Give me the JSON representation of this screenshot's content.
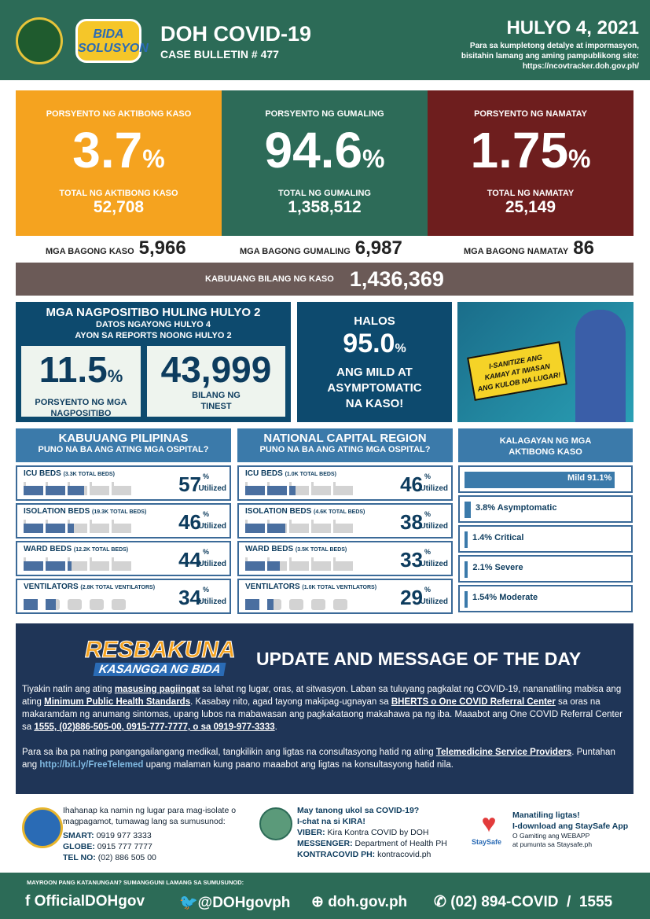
{
  "header": {
    "title": "DOH COVID-19",
    "bulletin": "CASE BULLETIN # 477",
    "date": "HULYO 4, 2021",
    "info_line1": "Para sa kumpletong detalye at impormasyon,",
    "info_line2": "bisitahin lamang ang aming pampublikong site:",
    "url": "https://ncovtracker.doh.gov.ph/",
    "logo_text": "BIDA SOLUSYON sa COVID-19",
    "seal_text": "Republic of the Philippines Department of Health"
  },
  "stats": [
    {
      "label": "PORSYENTO NG AKTIBONG KASO",
      "pct": "3.7",
      "total_label": "TOTAL NG AKTIBONG KASO",
      "total": "52,708",
      "color": "#f5a31f"
    },
    {
      "label": "PORSYENTO NG GUMALING",
      "pct": "94.6",
      "total_label": "TOTAL NG GUMALING",
      "total": "1,358,512",
      "color": "#2d6b58"
    },
    {
      "label": "PORSYENTO NG NAMATAY",
      "pct": "1.75",
      "total_label": "TOTAL NG NAMATAY",
      "total": "25,149",
      "color": "#6e1e1e"
    }
  ],
  "pct_sign": "%",
  "new": [
    {
      "label": "MGA BAGONG KASO",
      "value": "5,966"
    },
    {
      "label": "MGA BAGONG GUMALING",
      "value": "6,987"
    },
    {
      "label": "MGA BAGONG NAMATAY",
      "value": "86"
    }
  ],
  "total": {
    "label": "KABUUANG BILANG NG KASO",
    "value": "1,436,369"
  },
  "positivity": {
    "title": "MGA NAGPOSITIBO HULING HULYO 2",
    "sub1": "DATOS NGAYONG HULYO 4",
    "sub2": "AYON SA REPORTS NOONG HULYO 2",
    "rate": "11.5",
    "rate_label1": "PORSYENTO NG MGA",
    "rate_label2": "NAGPOSITIBO",
    "tests": "43,999",
    "tests_label1": "BILANG NG",
    "tests_label2": "TINEST"
  },
  "halos": {
    "l1": "HALOS",
    "value": "95.0",
    "l2": "ANG MILD AT",
    "l3": "ASYMPTOMATIC",
    "l4": "NA KASO!"
  },
  "poster": {
    "text1": "I-SANITIZE ANG",
    "text2": "KAMAY AT IWASAN",
    "text3": "ANG KULOB NA LUGAR!"
  },
  "hospitals": [
    {
      "title": "KABUUANG PILIPINAS",
      "subtitle": "PUNO NA BA ANG ATING MGA OSPITAL?",
      "rows": [
        {
          "name": "ICU BEDS",
          "cap": "(3.3K TOTAL BEDS)",
          "pct": 57,
          "type": "bed"
        },
        {
          "name": "ISOLATION BEDS",
          "cap": "(19.3K TOTAL BEDS)",
          "pct": 46,
          "type": "bed"
        },
        {
          "name": "WARD BEDS",
          "cap": "(12.2K TOTAL BEDS)",
          "pct": 44,
          "type": "bed"
        },
        {
          "name": "VENTILATORS",
          "cap": "(2.8K TOTAL VENTILATORS)",
          "pct": 34,
          "type": "vent"
        }
      ]
    },
    {
      "title": "NATIONAL CAPITAL REGION",
      "subtitle": "PUNO NA BA ANG ATING MGA OSPITAL?",
      "rows": [
        {
          "name": "ICU BEDS",
          "cap": "(1.0K TOTAL BEDS)",
          "pct": 46,
          "type": "bed"
        },
        {
          "name": "ISOLATION BEDS",
          "cap": "(4.6K TOTAL BEDS)",
          "pct": 38,
          "type": "bed"
        },
        {
          "name": "WARD BEDS",
          "cap": "(3.5K TOTAL BEDS)",
          "pct": 33,
          "type": "bed"
        },
        {
          "name": "VENTILATORS",
          "cap": "(1.0K TOTAL VENTILATORS)",
          "pct": 29,
          "type": "vent"
        }
      ]
    }
  ],
  "utilized": "Utilized",
  "status": {
    "title1": "KALAGAYAN NG MGA",
    "title2": "AKTIBONG KASO",
    "items": [
      {
        "label": "Mild 91.1%",
        "pct": 91.1
      },
      {
        "label": "3.8% Asymptomatic",
        "pct": 3.8
      },
      {
        "label": "1.4% Critical",
        "pct": 1.4
      },
      {
        "label": "2.1% Severe",
        "pct": 2.1
      },
      {
        "label": "1.54% Moderate",
        "pct": 1.54
      }
    ]
  },
  "message": {
    "logo1": "RESBAKUNA",
    "logo2": "KASANGGA NG BIDA",
    "title": "UPDATE AND MESSAGE OF THE DAY",
    "p1": [
      "Tiyakin natin ang ating ",
      "masusing pagiingat",
      " sa lahat ng lugar, oras, at sitwasyon. Laban sa tuluyang pagkalat ng COVID-19, nananatiling mabisa ang ating ",
      "Minimum Public Health Standards",
      ". Kasabay nito, agad tayong makipag-ugnayan sa  ",
      "BHERTS o One COVID Referral Center",
      " sa oras na makaramdam ng anumang sintomas, upang lubos na mabawasan ang pagkakataong makahawa pa ng iba. Maaabot ang One COVID Referral Center sa ",
      "1555, (02)886-505-00, 0915-777-7777, o sa 0919-977-3333",
      "."
    ],
    "p2": [
      "Para sa iba pa nating pangangailangang medikal, tangkilikin ang ligtas na consultasyong hatid ng ating ",
      "Telemedicine Service Providers",
      ". Puntahan ang ",
      "http://bit.ly/FreeTelemed",
      " upang malaman kung paano maaabot ang ligtas na konsultasyong hatid nila."
    ]
  },
  "contacts": {
    "isolate": {
      "text": "Ihahanap ka namin ng lugar para mag-isolate o magpagamot, tumawag lang sa sumusunod:",
      "smart_l": "SMART:",
      "smart": " 0919 977 3333",
      "globe_l": "GLOBE:",
      "globe": " 0915 777 7777",
      "tel_l": "TEL NO:",
      "tel": " (02) 886 505 00"
    },
    "kira": {
      "q": "May tanong ukol sa COVID-19?",
      "chat": "I-chat na si KIRA!",
      "viber_l": "VIBER:",
      "viber": " Kira Kontra COVID by DOH",
      "msgr_l": "MESSENGER:",
      "msgr": " Department of Health PH",
      "kc_l": "KONTRACOVID PH:",
      "kc": " kontracovid.ph"
    },
    "staysafe": {
      "logo": "StaySafe",
      "l1": "Manatiling ligtas!",
      "l2": "I-download ang StaySafe App",
      "l3": "O Gamiting ang WEBAPP",
      "l4": "at pumunta sa Staysafe.ph"
    }
  },
  "footer": {
    "label": "MAYROON PANG KATANUNGAN? SUMANGGUNI LAMANG SA SUMUSUNOD:",
    "facebook": "OfficialDOHgov",
    "twitter": "@DOHgovph",
    "web": "doh.gov.ph",
    "phone": "(02) 894-COVID  /  1555"
  }
}
